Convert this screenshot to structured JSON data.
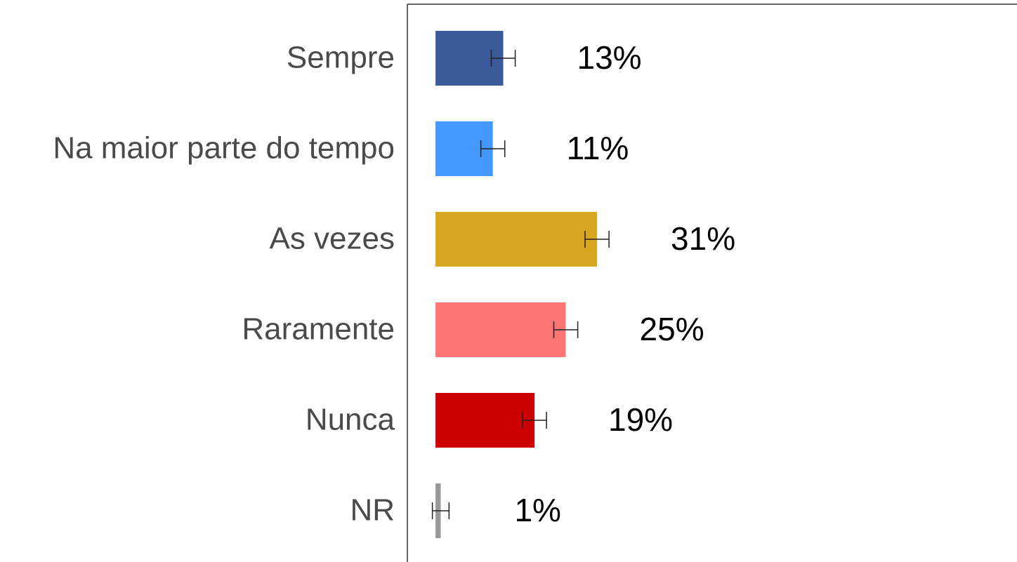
{
  "chart_data": {
    "type": "bar",
    "orientation": "horizontal",
    "categories": [
      "Sempre",
      "Na maior parte do tempo",
      "As vezes",
      "Raramente",
      "Nunca",
      "NR"
    ],
    "values": [
      13,
      11,
      31,
      25,
      19,
      1
    ],
    "value_labels": [
      "13%",
      "11%",
      "31%",
      "25%",
      "19%",
      "1%"
    ],
    "errors": [
      2.3,
      2.3,
      2.3,
      2.3,
      2.3,
      1.6
    ],
    "colors": [
      "#3a5a9b",
      "#4499ff",
      "#daa520",
      "#ff7575",
      "#cc0000",
      "#999999"
    ],
    "xlim": [
      -5.4,
      111.6
    ]
  }
}
